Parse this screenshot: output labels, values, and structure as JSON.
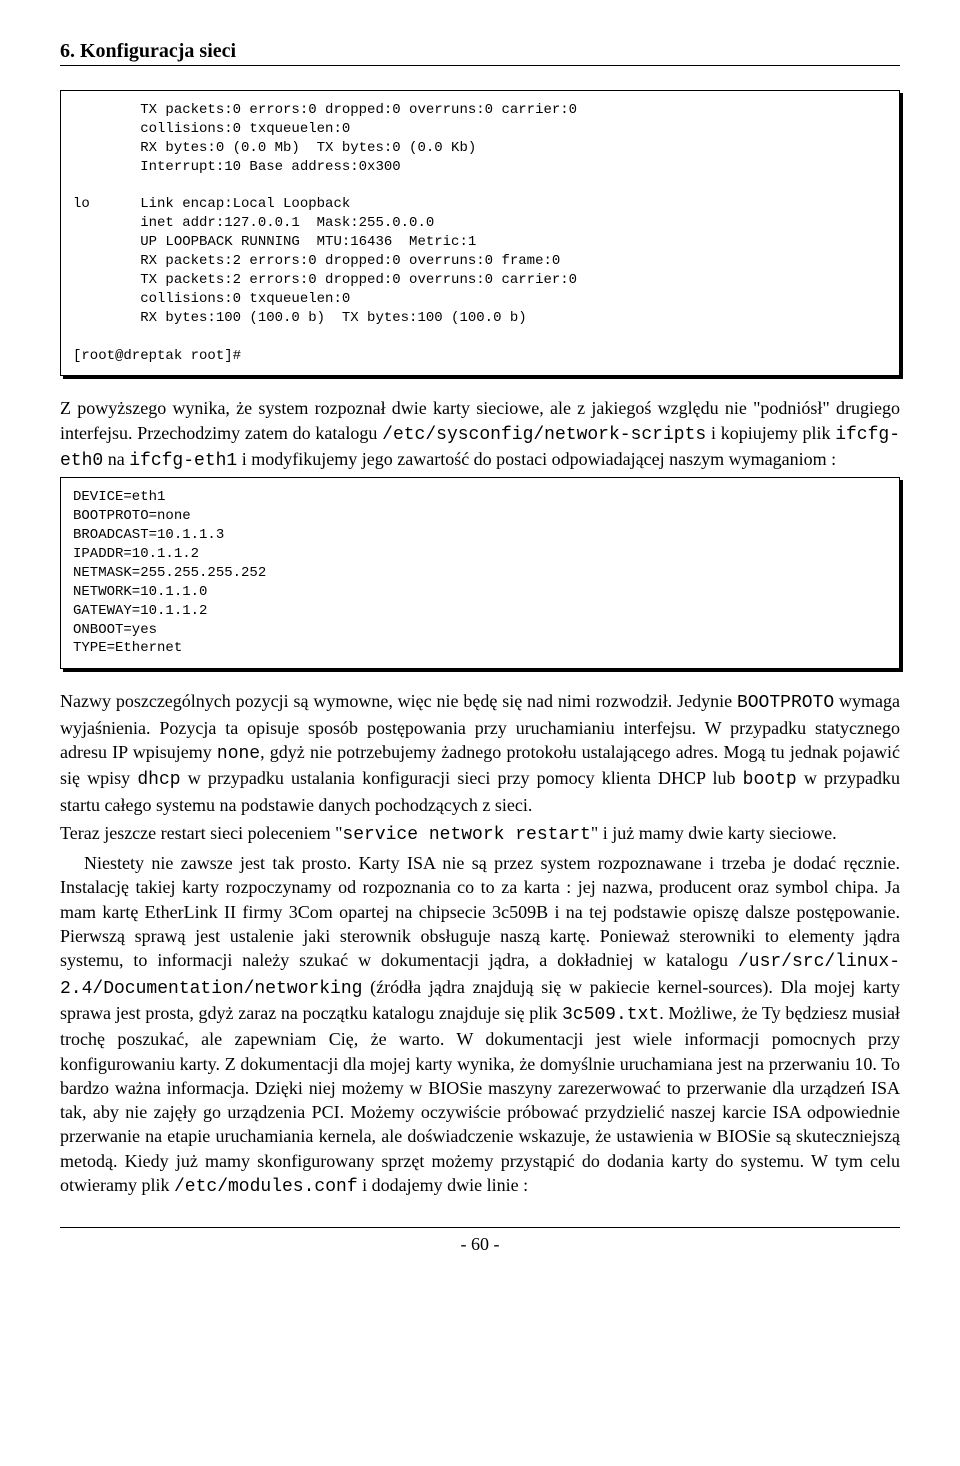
{
  "header": {
    "title": "6. Konfiguracja sieci"
  },
  "code1": "        TX packets:0 errors:0 dropped:0 overruns:0 carrier:0\n        collisions:0 txqueuelen:0\n        RX bytes:0 (0.0 Mb)  TX bytes:0 (0.0 Kb)\n        Interrupt:10 Base address:0x300\n\nlo      Link encap:Local Loopback\n        inet addr:127.0.0.1  Mask:255.0.0.0\n        UP LOOPBACK RUNNING  MTU:16436  Metric:1\n        RX packets:2 errors:0 dropped:0 overruns:0 frame:0\n        TX packets:2 errors:0 dropped:0 overruns:0 carrier:0\n        collisions:0 txqueuelen:0\n        RX bytes:100 (100.0 b)  TX bytes:100 (100.0 b)\n\n[root@dreptak root]#",
  "para1_a": "Z powyższego wynika, że system rozpoznał dwie karty sieciowe, ale z jakiegoś względu nie \"podniósł\" drugiego interfejsu. Przechodzimy zatem do katalogu ",
  "para1_mono1": "/etc/sysconfig/network-scripts",
  "para1_b": " i kopiujemy plik ",
  "para1_mono2": "ifcfg-eth0",
  "para1_c": " na ",
  "para1_mono3": "ifcfg-eth1",
  "para1_d": " i modyfikujemy jego zawartość do postaci odpowiadającej naszym wymaganiom :",
  "code2": "DEVICE=eth1\nBOOTPROTO=none\nBROADCAST=10.1.1.3\nIPADDR=10.1.1.2\nNETMASK=255.255.255.252\nNETWORK=10.1.1.0\nGATEWAY=10.1.1.2\nONBOOT=yes\nTYPE=Ethernet",
  "para2_a": "Nazwy poszczególnych pozycji są wymowne, więc nie będę się nad nimi rozwodził. Jedynie ",
  "para2_mono1": "BOOTPROTO",
  "para2_b": " wymaga wyjaśnienia. Pozycja ta opisuje sposób postępowania przy uruchamianiu interfejsu. W przypadku statycznego adresu IP wpisujemy ",
  "para2_mono2": "none",
  "para2_c": ", gdyż nie potrzebujemy żadnego protokołu ustalającego adres. Mogą tu jednak pojawić się wpisy ",
  "para2_mono3": "dhcp",
  "para2_d": " w przypadku ustalania konfiguracji sieci przy pomocy klienta DHCP lub ",
  "para2_mono4": "bootp",
  "para2_e": " w przypadku startu całego systemu na podstawie danych pochodzących z sieci.",
  "para3_a": "Teraz jeszcze restart sieci poleceniem \"",
  "para3_mono1": "service network restart",
  "para3_b": "\" i już mamy dwie karty sieciowe.",
  "para4_a": "Niestety nie zawsze jest tak prosto. Karty ISA nie są przez system rozpoznawane i trzeba je dodać ręcznie. Instalację takiej karty rozpoczynamy od rozpoznania co to za karta : jej nazwa, producent oraz symbol chipa. Ja mam kartę EtherLink II firmy 3Com opartej na chipsecie 3c509B i na tej podstawie opiszę dalsze postępowanie. Pierwszą sprawą jest ustalenie jaki sterownik obsługuje naszą kartę. Ponieważ sterowniki to elementy jądra systemu, to informacji należy szukać w dokumentacji jądra, a dokładniej w katalogu ",
  "para4_mono1": "/usr/src/linux-2.4/Documentation/networking",
  "para4_b": " (źródła jądra znajdują się w pakiecie kernel-sources). Dla mojej karty sprawa jest prosta, gdyż zaraz na początku katalogu znajduje się plik ",
  "para4_mono2": "3c509.txt",
  "para4_c": ". Możliwe, że Ty będziesz musiał trochę poszukać, ale zapewniam Cię, że warto. W dokumentacji jest wiele informacji pomocnych przy konfigurowaniu karty. Z dokumentacji dla mojej karty wynika, że domyślnie uruchamiana jest na przerwaniu 10. To bardzo ważna informacja. Dzięki niej możemy w BIOSie maszyny zarezerwować to przerwanie dla urządzeń ISA tak, aby nie zajęły go urządzenia PCI. Możemy oczywiście próbować przydzielić naszej karcie ISA odpowiednie przerwanie na etapie uruchamiania kernela, ale doświadczenie wskazuje, że ustawienia w BIOSie są skuteczniejszą metodą. Kiedy już mamy skonfigurowany sprzęt możemy przystąpić do dodania karty do systemu. W tym celu otwieramy plik ",
  "para4_mono3": "/etc/modules.conf",
  "para4_d": " i dodajemy dwie linie :",
  "footer": {
    "page": "- 60 -"
  }
}
